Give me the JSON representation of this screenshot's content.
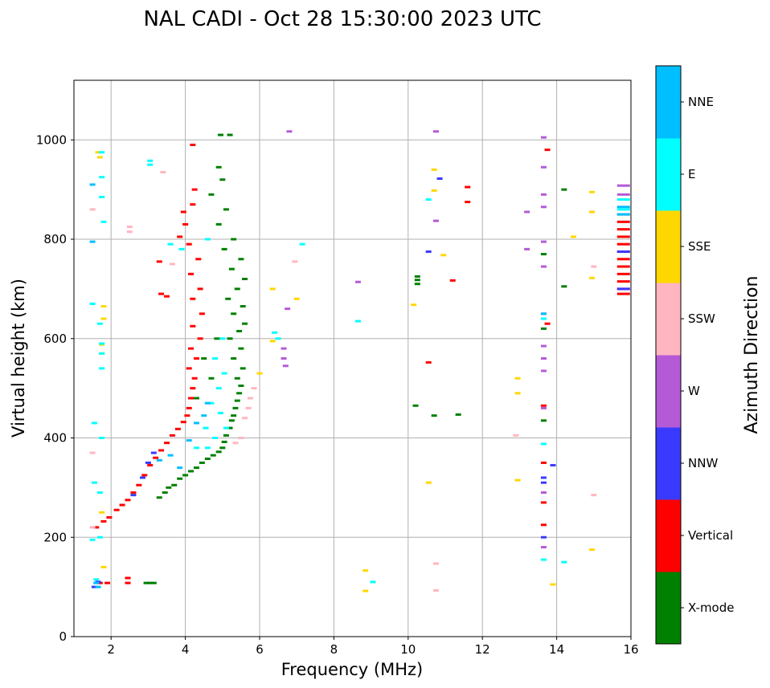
{
  "chart_data": {
    "type": "scatter",
    "title": "NAL CADI - Oct 28 15:30:00 2023 UTC",
    "xlabel": "Frequency (MHz)",
    "ylabel": "Virtual height (km)",
    "xlim": [
      1,
      16
    ],
    "ylim": [
      0,
      1120
    ],
    "xticks": [
      2,
      4,
      6,
      8,
      10,
      12,
      14,
      16
    ],
    "yticks": [
      0,
      200,
      400,
      600,
      800,
      1000
    ],
    "grid": true,
    "colorbar": {
      "label": "Azimuth Direction",
      "categories": [
        {
          "name": "X-mode",
          "color": "#008000"
        },
        {
          "name": "Vertical",
          "color": "#ff0000"
        },
        {
          "name": "NNW",
          "color": "#3a3aff"
        },
        {
          "name": "W",
          "color": "#b55ad6"
        },
        {
          "name": "SSW",
          "color": "#ffb6c1"
        },
        {
          "name": "SSE",
          "color": "#ffd700"
        },
        {
          "name": "E",
          "color": "#00ffff"
        },
        {
          "name": "NNE",
          "color": "#00bfff"
        }
      ]
    },
    "series": [
      {
        "name": "X-mode",
        "points": [
          [
            2.95,
            108
          ],
          [
            3.05,
            108
          ],
          [
            3.15,
            108
          ],
          [
            3.3,
            280
          ],
          [
            3.45,
            290
          ],
          [
            3.55,
            300
          ],
          [
            3.7,
            305
          ],
          [
            3.85,
            318
          ],
          [
            4.0,
            325
          ],
          [
            4.15,
            333
          ],
          [
            4.3,
            340
          ],
          [
            4.45,
            350
          ],
          [
            4.6,
            358
          ],
          [
            4.75,
            365
          ],
          [
            4.9,
            372
          ],
          [
            5.0,
            380
          ],
          [
            5.05,
            392
          ],
          [
            5.1,
            405
          ],
          [
            5.2,
            420
          ],
          [
            5.25,
            435
          ],
          [
            5.3,
            445
          ],
          [
            5.35,
            460
          ],
          [
            5.4,
            475
          ],
          [
            5.45,
            490
          ],
          [
            5.5,
            505
          ],
          [
            5.4,
            520
          ],
          [
            5.55,
            540
          ],
          [
            5.3,
            560
          ],
          [
            5.5,
            580
          ],
          [
            5.2,
            600
          ],
          [
            5.45,
            615
          ],
          [
            5.6,
            630
          ],
          [
            5.3,
            650
          ],
          [
            5.55,
            665
          ],
          [
            5.15,
            680
          ],
          [
            5.4,
            700
          ],
          [
            5.6,
            720
          ],
          [
            5.25,
            740
          ],
          [
            5.5,
            760
          ],
          [
            5.05,
            780
          ],
          [
            5.3,
            800
          ],
          [
            4.9,
            830
          ],
          [
            5.1,
            860
          ],
          [
            4.7,
            890
          ],
          [
            5.0,
            920
          ],
          [
            4.9,
            945
          ],
          [
            4.95,
            1010
          ],
          [
            5.2,
            1010
          ],
          [
            10.25,
            710
          ],
          [
            10.25,
            718
          ],
          [
            10.25,
            725
          ],
          [
            10.2,
            465
          ],
          [
            10.7,
            445
          ],
          [
            11.35,
            447
          ],
          [
            13.65,
            620
          ],
          [
            13.65,
            435
          ],
          [
            13.65,
            770
          ],
          [
            14.2,
            900
          ],
          [
            14.2,
            705
          ],
          [
            4.7,
            520
          ],
          [
            4.5,
            560
          ],
          [
            4.85,
            600
          ],
          [
            4.3,
            480
          ]
        ]
      },
      {
        "name": "Vertical",
        "points": [
          [
            1.6,
            220
          ],
          [
            1.8,
            232
          ],
          [
            1.95,
            240
          ],
          [
            2.15,
            255
          ],
          [
            2.3,
            265
          ],
          [
            2.45,
            275
          ],
          [
            2.6,
            290
          ],
          [
            2.75,
            305
          ],
          [
            2.9,
            325
          ],
          [
            3.05,
            345
          ],
          [
            3.2,
            360
          ],
          [
            3.35,
            375
          ],
          [
            3.5,
            390
          ],
          [
            3.65,
            405
          ],
          [
            3.8,
            418
          ],
          [
            3.95,
            432
          ],
          [
            4.05,
            445
          ],
          [
            4.1,
            460
          ],
          [
            4.15,
            480
          ],
          [
            4.2,
            500
          ],
          [
            4.25,
            520
          ],
          [
            4.1,
            540
          ],
          [
            4.3,
            560
          ],
          [
            4.15,
            580
          ],
          [
            4.4,
            600
          ],
          [
            4.2,
            625
          ],
          [
            4.45,
            650
          ],
          [
            4.2,
            680
          ],
          [
            4.4,
            700
          ],
          [
            4.15,
            730
          ],
          [
            4.35,
            760
          ],
          [
            4.1,
            790
          ],
          [
            3.85,
            805
          ],
          [
            4.0,
            830
          ],
          [
            3.95,
            855
          ],
          [
            4.2,
            870
          ],
          [
            4.25,
            900
          ],
          [
            4.2,
            990
          ],
          [
            3.35,
            690
          ],
          [
            3.5,
            685
          ],
          [
            3.3,
            755
          ],
          [
            2.45,
            118
          ],
          [
            2.45,
            108
          ],
          [
            1.7,
            108
          ],
          [
            1.9,
            108
          ],
          [
            10.55,
            552
          ],
          [
            11.2,
            717
          ],
          [
            11.6,
            905
          ],
          [
            11.6,
            875
          ],
          [
            13.75,
            980
          ],
          [
            13.75,
            630
          ],
          [
            13.65,
            465
          ],
          [
            13.65,
            350
          ],
          [
            13.65,
            270
          ],
          [
            13.65,
            225
          ],
          [
            15.8,
            850
          ],
          [
            15.8,
            835
          ],
          [
            15.8,
            820
          ],
          [
            15.8,
            805
          ],
          [
            15.8,
            790
          ],
          [
            15.8,
            775
          ],
          [
            15.8,
            760
          ],
          [
            15.8,
            745
          ],
          [
            15.8,
            730
          ],
          [
            15.8,
            715
          ],
          [
            15.8,
            700
          ],
          [
            15.8,
            690
          ]
        ]
      },
      {
        "name": "NNW",
        "points": [
          [
            1.55,
            100
          ],
          [
            1.65,
            110
          ],
          [
            2.6,
            285
          ],
          [
            2.85,
            320
          ],
          [
            3.0,
            350
          ],
          [
            3.15,
            370
          ],
          [
            10.55,
            775
          ],
          [
            10.85,
            922
          ],
          [
            13.65,
            320
          ],
          [
            13.65,
            310
          ],
          [
            13.65,
            200
          ],
          [
            13.9,
            345
          ],
          [
            15.8,
            775
          ],
          [
            15.8,
            700
          ]
        ]
      },
      {
        "name": "W",
        "points": [
          [
            6.65,
            580
          ],
          [
            6.65,
            560
          ],
          [
            6.7,
            545
          ],
          [
            6.75,
            660
          ],
          [
            6.8,
            1017
          ],
          [
            8.65,
            714
          ],
          [
            10.75,
            1017
          ],
          [
            10.75,
            837
          ],
          [
            13.2,
            855
          ],
          [
            13.2,
            780
          ],
          [
            13.65,
            1005
          ],
          [
            13.65,
            945
          ],
          [
            13.65,
            890
          ],
          [
            13.65,
            865
          ],
          [
            13.65,
            795
          ],
          [
            13.65,
            745
          ],
          [
            13.65,
            650
          ],
          [
            13.65,
            585
          ],
          [
            13.65,
            560
          ],
          [
            13.65,
            535
          ],
          [
            13.65,
            460
          ],
          [
            13.65,
            290
          ],
          [
            13.65,
            180
          ],
          [
            15.8,
            908
          ],
          [
            15.8,
            890
          ]
        ]
      },
      {
        "name": "SSW",
        "points": [
          [
            1.5,
            860
          ],
          [
            1.5,
            370
          ],
          [
            1.5,
            220
          ],
          [
            2.5,
            815
          ],
          [
            2.5,
            825
          ],
          [
            3.4,
            935
          ],
          [
            3.65,
            750
          ],
          [
            5.6,
            440
          ],
          [
            5.7,
            460
          ],
          [
            5.75,
            480
          ],
          [
            5.85,
            500
          ],
          [
            5.5,
            400
          ],
          [
            5.35,
            390
          ],
          [
            6.95,
            755
          ],
          [
            10.75,
            147
          ],
          [
            10.75,
            93
          ],
          [
            12.9,
            405
          ],
          [
            15.0,
            745
          ],
          [
            15.0,
            285
          ]
        ]
      },
      {
        "name": "SSE",
        "points": [
          [
            1.65,
            975
          ],
          [
            1.7,
            965
          ],
          [
            1.8,
            665
          ],
          [
            1.8,
            640
          ],
          [
            1.75,
            588
          ],
          [
            1.75,
            570
          ],
          [
            1.8,
            140
          ],
          [
            1.75,
            250
          ],
          [
            6.35,
            700
          ],
          [
            6.35,
            595
          ],
          [
            6.0,
            530
          ],
          [
            7.0,
            680
          ],
          [
            8.85,
            133
          ],
          [
            8.85,
            92
          ],
          [
            10.15,
            668
          ],
          [
            10.7,
            940
          ],
          [
            10.7,
            898
          ],
          [
            10.95,
            768
          ],
          [
            10.55,
            310
          ],
          [
            12.95,
            520
          ],
          [
            12.95,
            490
          ],
          [
            12.95,
            315
          ],
          [
            13.9,
            105
          ],
          [
            14.45,
            805
          ],
          [
            14.95,
            895
          ],
          [
            14.95,
            855
          ],
          [
            14.95,
            722
          ],
          [
            14.95,
            175
          ]
        ]
      },
      {
        "name": "E",
        "points": [
          [
            1.5,
            670
          ],
          [
            1.55,
            430
          ],
          [
            1.55,
            310
          ],
          [
            1.5,
            195
          ],
          [
            1.6,
            115
          ],
          [
            1.75,
            975
          ],
          [
            1.75,
            925
          ],
          [
            1.75,
            885
          ],
          [
            1.8,
            835
          ],
          [
            1.7,
            630
          ],
          [
            1.75,
            590
          ],
          [
            1.75,
            570
          ],
          [
            1.75,
            540
          ],
          [
            1.75,
            400
          ],
          [
            1.7,
            290
          ],
          [
            1.7,
            200
          ],
          [
            3.05,
            958
          ],
          [
            3.05,
            950
          ],
          [
            3.6,
            790
          ],
          [
            3.9,
            780
          ],
          [
            4.6,
            800
          ],
          [
            5.0,
            600
          ],
          [
            4.8,
            560
          ],
          [
            5.05,
            530
          ],
          [
            4.9,
            500
          ],
          [
            4.7,
            470
          ],
          [
            4.95,
            450
          ],
          [
            5.1,
            420
          ],
          [
            4.55,
            420
          ],
          [
            4.8,
            400
          ],
          [
            4.3,
            380
          ],
          [
            4.6,
            380
          ],
          [
            6.4,
            612
          ],
          [
            6.5,
            600
          ],
          [
            7.15,
            790
          ],
          [
            8.65,
            635
          ],
          [
            9.05,
            110
          ],
          [
            10.55,
            880
          ],
          [
            13.65,
            640
          ],
          [
            13.65,
            388
          ],
          [
            13.65,
            155
          ],
          [
            14.2,
            150
          ],
          [
            15.8,
            880
          ],
          [
            15.8,
            860
          ]
        ]
      },
      {
        "name": "NNE",
        "points": [
          [
            1.5,
            910
          ],
          [
            1.5,
            795
          ],
          [
            1.65,
            100
          ],
          [
            1.6,
            108
          ],
          [
            3.3,
            355
          ],
          [
            3.6,
            365
          ],
          [
            3.85,
            340
          ],
          [
            4.1,
            395
          ],
          [
            4.3,
            430
          ],
          [
            4.5,
            445
          ],
          [
            4.6,
            470
          ],
          [
            13.65,
            650
          ],
          [
            15.8,
            865
          ],
          [
            15.8,
            850
          ]
        ]
      }
    ]
  }
}
